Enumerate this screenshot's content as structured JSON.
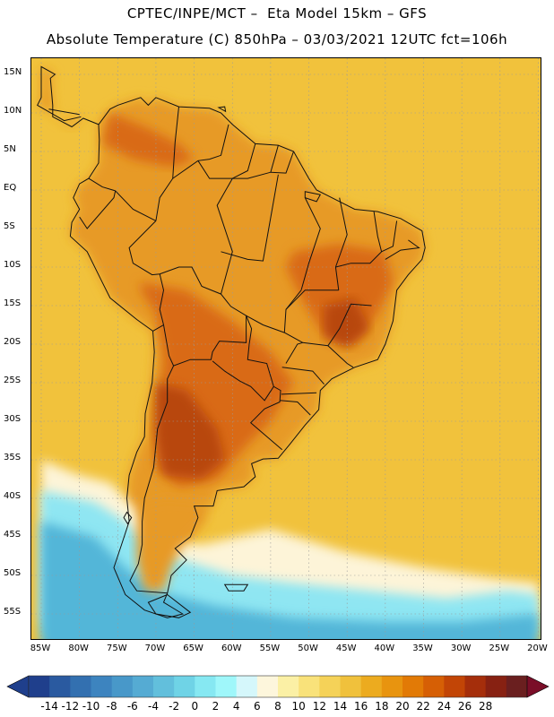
{
  "header": {
    "line1": "CPTEC/INPE/MCT –  Eta Model 15km – GFS",
    "line2": "Absolute Temperature (C) 850hPa – 03/03/2021 12UTC fct=106h"
  },
  "axes": {
    "lat_labels": [
      "15N",
      "10N",
      "5N",
      "EQ",
      "5S",
      "10S",
      "15S",
      "20S",
      "25S",
      "30S",
      "35S",
      "40S",
      "45S",
      "50S",
      "55S"
    ],
    "lon_labels": [
      "85W",
      "80W",
      "75W",
      "70W",
      "65W",
      "60W",
      "55W",
      "50W",
      "45W",
      "40W",
      "35W",
      "30W",
      "25W",
      "20W"
    ]
  },
  "colorbar": {
    "labels": [
      "-14",
      "-12",
      "-10",
      "-8",
      "-6",
      "-4",
      "-2",
      "0",
      "2",
      "4",
      "6",
      "8",
      "10",
      "12",
      "14",
      "16",
      "18",
      "20",
      "22",
      "24",
      "26",
      "28"
    ],
    "colors": [
      "#1f3f8c",
      "#2a5aa0",
      "#3370b0",
      "#3d84bf",
      "#4898c9",
      "#55abd3",
      "#62bfdc",
      "#6fd3e6",
      "#86e8f2",
      "#9ff7fa",
      "#d5f7fb",
      "#fdf6dc",
      "#fbf0a5",
      "#f9e27a",
      "#f5d258",
      "#f0c13c",
      "#ecab1f",
      "#e8940f",
      "#e27a06",
      "#d65f05",
      "#c24506",
      "#a52e0b",
      "#872112",
      "#6a1f1f"
    ],
    "under_color": "#1f3f8c",
    "over_color": "#7a0e28"
  },
  "map": {
    "ocean_color": "#f1c23c",
    "land_warm": "#e79a25",
    "land_hot": "#d96a17",
    "core_hot": "#b8460f",
    "cool_band": "#8fe6f2",
    "cold_band": "#52b6d8",
    "frost_band": "#fdf4d8"
  }
}
